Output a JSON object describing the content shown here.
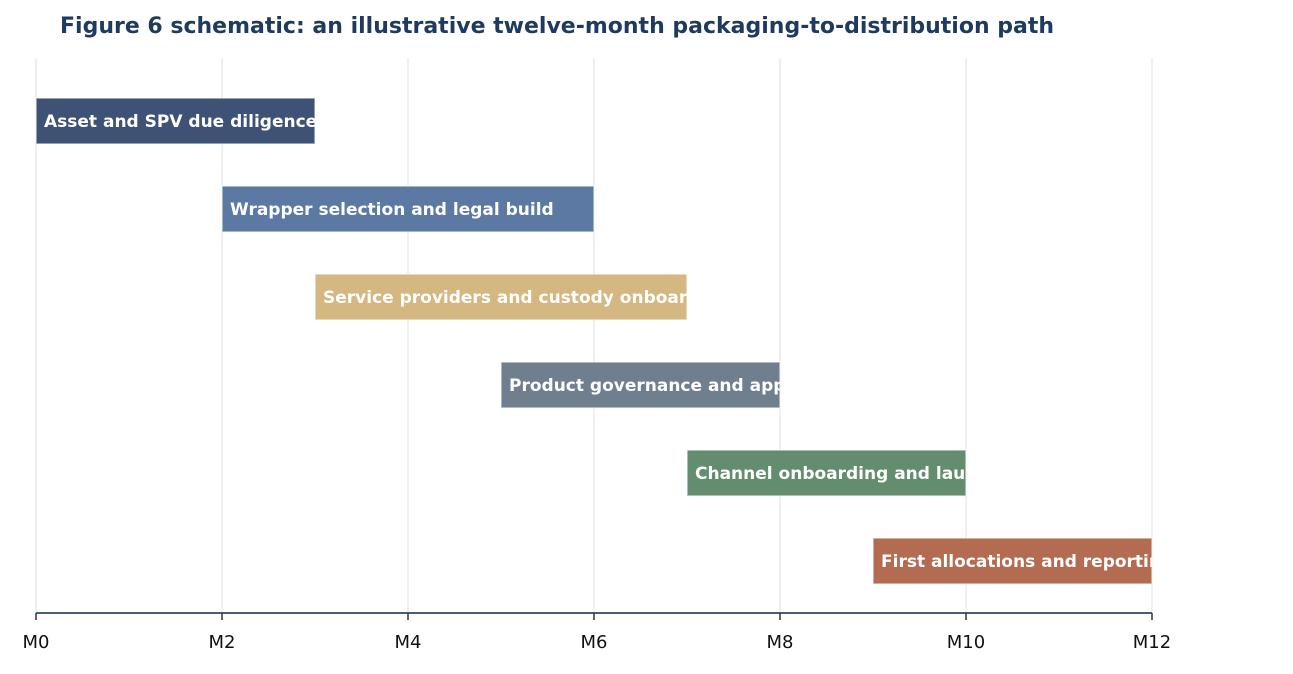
{
  "chart_data": {
    "type": "gantt",
    "title": "Figure 6 schematic: an illustrative twelve-month packaging-to-distribution path",
    "xlabel": "",
    "ylabel": "",
    "x_ticks": [
      "M0",
      "M2",
      "M4",
      "M6",
      "M8",
      "M10",
      "M12"
    ],
    "tick_values": [
      0,
      2,
      4,
      6,
      8,
      10,
      12
    ],
    "xlim": [
      0,
      12
    ],
    "grid": "vertical",
    "tasks": [
      {
        "label": "Asset and SPV due diligence",
        "start": 0,
        "end": 3,
        "color": "#3d5275"
      },
      {
        "label": "Wrapper selection and legal build",
        "start": 2,
        "end": 6,
        "color": "#5b79a3"
      },
      {
        "label": "Service providers and custody onboarding",
        "start": 3,
        "end": 7,
        "color": "#d4b781"
      },
      {
        "label": "Product governance and approvals",
        "start": 5,
        "end": 8,
        "color": "#707f8e"
      },
      {
        "label": "Channel onboarding and launch",
        "start": 7,
        "end": 10,
        "color": "#648d70"
      },
      {
        "label": "First allocations and reporting",
        "start": 9,
        "end": 12,
        "color": "#b36c51"
      }
    ],
    "axis_color": "#4a5f7d",
    "grid_color": "#e6e6e6"
  }
}
